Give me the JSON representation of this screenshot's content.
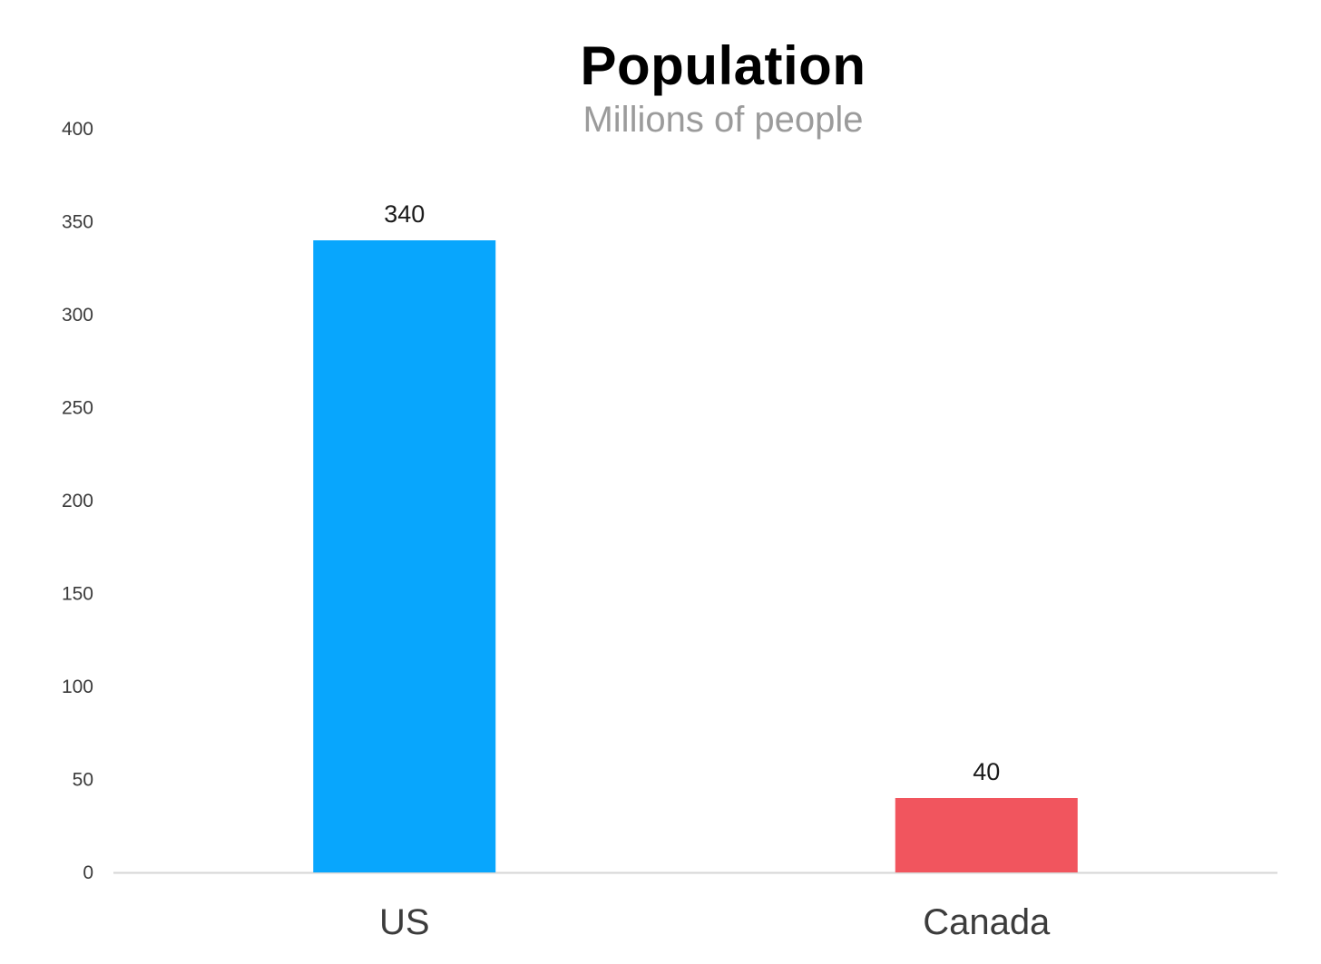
{
  "chart_data": {
    "type": "bar",
    "title": "Population",
    "subtitle": "Millions of people",
    "xlabel": "",
    "ylabel": "",
    "categories": [
      "US",
      "Canada"
    ],
    "values": [
      340,
      40
    ],
    "data_labels": [
      "340",
      "40"
    ],
    "colors": [
      "#08A6FD",
      "#F1555E"
    ],
    "ylim": [
      0,
      400
    ],
    "yticks": [
      0,
      50,
      100,
      150,
      200,
      250,
      300,
      350,
      400
    ],
    "ytick_labels": [
      "0",
      "50",
      "100",
      "150",
      "200",
      "250",
      "300",
      "350",
      "400"
    ],
    "grid": false,
    "legend": "none",
    "axis_color": "#d6d6d6"
  }
}
